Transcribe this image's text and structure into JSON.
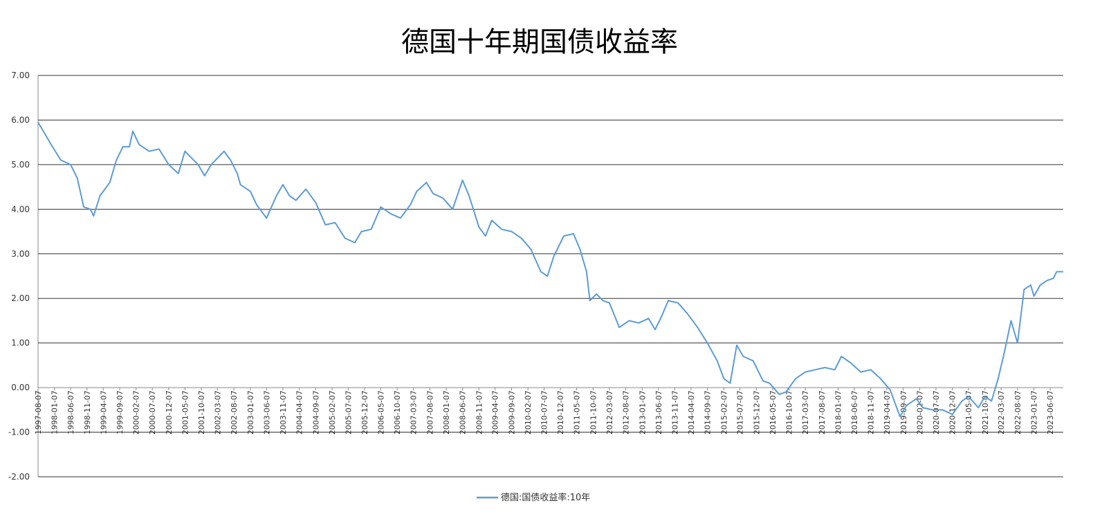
{
  "chart_data": {
    "type": "line",
    "title": "德国十年期国债收益率",
    "xlabel": "",
    "ylabel": "",
    "ylim": [
      -2,
      7
    ],
    "yticks": [
      "7.00",
      "6.00",
      "5.00",
      "4.00",
      "3.00",
      "2.00",
      "1.00",
      "0.00",
      "-1.00",
      "-2.00"
    ],
    "xlim": [
      "1997-08-07",
      "2023-10-07"
    ],
    "x_tick_labels": [
      "1997-08-07",
      "1998-01-07",
      "1998-06-07",
      "1998-11-07",
      "1999-04-07",
      "1999-09-07",
      "2000-02-07",
      "2000-07-07",
      "2000-12-07",
      "2001-05-07",
      "2001-10-07",
      "2002-03-07",
      "2002-08-07",
      "2003-01-07",
      "2003-06-07",
      "2003-11-07",
      "2004-04-07",
      "2004-09-07",
      "2005-02-07",
      "2005-07-07",
      "2005-12-07",
      "2006-05-07",
      "2006-10-07",
      "2007-03-07",
      "2007-08-07",
      "2008-01-07",
      "2008-06-07",
      "2008-11-07",
      "2009-04-07",
      "2009-09-07",
      "2010-02-07",
      "2010-07-07",
      "2010-12-07",
      "2011-05-07",
      "2011-10-07",
      "2012-03-07",
      "2012-08-07",
      "2013-01-07",
      "2013-06-07",
      "2013-11-07",
      "2014-04-07",
      "2014-09-07",
      "2015-02-07",
      "2015-07-07",
      "2015-12-07",
      "2016-05-07",
      "2016-10-07",
      "2017-03-07",
      "2017-08-07",
      "2018-01-07",
      "2018-06-07",
      "2018-11-07",
      "2019-04-07",
      "2019-09-07",
      "2020-02-07",
      "2020-07-07",
      "2020-12-07",
      "2021-05-07",
      "2021-10-07",
      "2022-03-07",
      "2022-08-07",
      "2023-01-07",
      "2023-06-07"
    ],
    "grid": true,
    "legend_position": "bottom",
    "series": [
      {
        "name": "德国:国债收益率:10年",
        "color": "#5b9bd5",
        "x": [
          "1997-08-07",
          "1997-10-07",
          "1997-12-07",
          "1998-03-07",
          "1998-06-07",
          "1998-08-07",
          "1998-10-07",
          "1998-12-07",
          "1999-01-07",
          "1999-03-07",
          "1999-06-07",
          "1999-08-07",
          "1999-10-07",
          "1999-12-07",
          "2000-01-07",
          "2000-03-07",
          "2000-06-07",
          "2000-09-07",
          "2000-12-07",
          "2001-03-07",
          "2001-05-07",
          "2001-09-07",
          "2001-11-07",
          "2002-01-07",
          "2002-05-07",
          "2002-07-07",
          "2002-09-07",
          "2002-10-07",
          "2003-01-07",
          "2003-03-07",
          "2003-06-07",
          "2003-09-07",
          "2003-11-07",
          "2004-01-07",
          "2004-03-07",
          "2004-06-07",
          "2004-09-07",
          "2004-12-07",
          "2005-03-07",
          "2005-06-07",
          "2005-09-07",
          "2005-11-07",
          "2006-02-07",
          "2006-05-07",
          "2006-08-07",
          "2006-11-07",
          "2007-02-07",
          "2007-04-07",
          "2007-07-07",
          "2007-09-07",
          "2007-12-07",
          "2008-03-07",
          "2008-06-07",
          "2008-08-07",
          "2008-11-07",
          "2009-01-07",
          "2009-03-07",
          "2009-06-07",
          "2009-09-07",
          "2009-12-07",
          "2010-03-07",
          "2010-06-07",
          "2010-08-07",
          "2010-10-07",
          "2011-01-07",
          "2011-04-07",
          "2011-06-07",
          "2011-08-07",
          "2011-09-07",
          "2011-11-07",
          "2012-01-07",
          "2012-03-07",
          "2012-06-07",
          "2012-09-07",
          "2012-12-07",
          "2013-03-07",
          "2013-05-07",
          "2013-07-07",
          "2013-09-07",
          "2013-12-07",
          "2014-03-07",
          "2014-06-07",
          "2014-09-07",
          "2014-12-07",
          "2015-02-07",
          "2015-04-07",
          "2015-06-07",
          "2015-08-07",
          "2015-11-07",
          "2016-02-07",
          "2016-04-07",
          "2016-07-07",
          "2016-09-07",
          "2016-12-07",
          "2017-03-07",
          "2017-06-07",
          "2017-09-07",
          "2017-12-07",
          "2018-02-07",
          "2018-05-07",
          "2018-08-07",
          "2018-11-07",
          "2019-02-07",
          "2019-05-07",
          "2019-08-07",
          "2019-10-07",
          "2020-01-07",
          "2020-03-07",
          "2020-06-07",
          "2020-09-07",
          "2020-12-07",
          "2021-03-07",
          "2021-05-07",
          "2021-08-07",
          "2021-10-07",
          "2021-12-07",
          "2022-02-07",
          "2022-04-07",
          "2022-06-07",
          "2022-08-07",
          "2022-10-07",
          "2022-12-07",
          "2023-01-07",
          "2023-03-07",
          "2023-05-07",
          "2023-07-07",
          "2023-08-07",
          "2023-10-07"
        ],
        "values": [
          5.95,
          5.7,
          5.45,
          5.1,
          5.0,
          4.7,
          4.05,
          4.0,
          3.85,
          4.3,
          4.6,
          5.1,
          5.4,
          5.4,
          5.75,
          5.45,
          5.3,
          5.35,
          5.0,
          4.8,
          5.3,
          5.0,
          4.75,
          5.0,
          5.3,
          5.1,
          4.8,
          4.55,
          4.4,
          4.1,
          3.8,
          4.3,
          4.55,
          4.3,
          4.2,
          4.45,
          4.15,
          3.65,
          3.7,
          3.35,
          3.25,
          3.5,
          3.55,
          4.05,
          3.9,
          3.8,
          4.1,
          4.4,
          4.6,
          4.35,
          4.25,
          4.0,
          4.65,
          4.3,
          3.6,
          3.4,
          3.75,
          3.55,
          3.5,
          3.35,
          3.1,
          2.6,
          2.5,
          2.95,
          3.4,
          3.45,
          3.1,
          2.6,
          1.95,
          2.1,
          1.95,
          1.9,
          1.35,
          1.5,
          1.45,
          1.55,
          1.3,
          1.6,
          1.95,
          1.9,
          1.65,
          1.35,
          1.0,
          0.6,
          0.2,
          0.1,
          0.95,
          0.7,
          0.6,
          0.15,
          0.1,
          -0.15,
          -0.1,
          0.2,
          0.35,
          0.4,
          0.45,
          0.4,
          0.7,
          0.55,
          0.35,
          0.4,
          0.2,
          -0.05,
          -0.65,
          -0.4,
          -0.25,
          -0.45,
          -0.5,
          -0.5,
          -0.6,
          -0.3,
          -0.2,
          -0.45,
          -0.2,
          -0.3,
          0.2,
          0.8,
          1.5,
          1.0,
          2.2,
          2.3,
          2.05,
          2.3,
          2.4,
          2.45,
          2.6,
          2.6
        ]
      }
    ]
  }
}
